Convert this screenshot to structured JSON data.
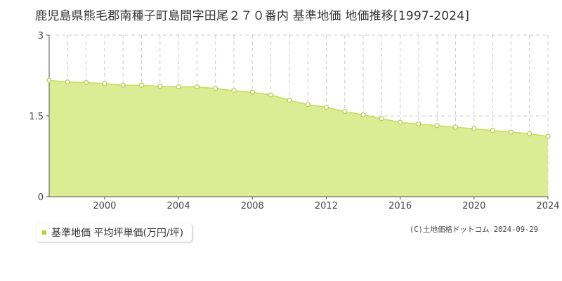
{
  "header": {
    "title": "鹿児島県熊毛郡南種子町島間字田尾２７０番内 基準地価 地価推移[1997-2024]"
  },
  "legend": {
    "label": "基準地価 平均坪単価(万円/坪)"
  },
  "footer": {
    "credit": "(C)土地価格ドットコム 2024-09-29"
  },
  "colors": {
    "area_fill": "#dcec94",
    "line": "#c8dc5a",
    "point_fill": "#ffffff",
    "point_stroke": "#b8cc50",
    "grid": "#cccccc",
    "legend_marker": "#b8d030"
  },
  "chart_data": {
    "type": "area",
    "title": "鹿児島県熊毛郡南種子町島間字田尾２７０番内 基準地価 地価推移[1997-2024]",
    "xlim": [
      1997,
      2024
    ],
    "ylim": [
      0,
      3
    ],
    "x_ticks": [
      2000,
      2004,
      2008,
      2012,
      2016,
      2020,
      2024
    ],
    "y_ticks": [
      0,
      1.5,
      3
    ],
    "y_tick_labels": [
      "0",
      "1.5",
      "3"
    ],
    "grid": true,
    "legend_position": "bottom-left",
    "series": [
      {
        "name": "基準地価 平均坪単価(万円/坪)",
        "x": [
          1997,
          1998,
          1999,
          2000,
          2001,
          2002,
          2003,
          2004,
          2005,
          2006,
          2007,
          2008,
          2009,
          2010,
          2011,
          2012,
          2013,
          2014,
          2015,
          2016,
          2017,
          2018,
          2019,
          2020,
          2021,
          2022,
          2023,
          2024
        ],
        "values": [
          2.16,
          2.13,
          2.12,
          2.1,
          2.07,
          2.07,
          2.05,
          2.04,
          2.04,
          2.01,
          1.97,
          1.94,
          1.89,
          1.79,
          1.71,
          1.66,
          1.58,
          1.52,
          1.45,
          1.38,
          1.35,
          1.32,
          1.29,
          1.26,
          1.23,
          1.2,
          1.17,
          1.12
        ]
      }
    ]
  }
}
